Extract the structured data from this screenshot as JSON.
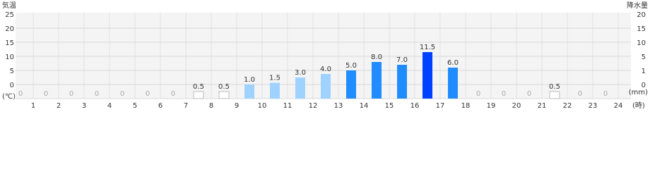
{
  "chart_data": {
    "type": "bar",
    "y_label": "気温",
    "y_unit": "(℃)",
    "y2_label": "降水量",
    "y2_unit": "(mm)",
    "x_unit": "(時)",
    "ylim": [
      0,
      25
    ],
    "yticks": [
      0,
      5,
      10,
      15,
      20,
      25
    ],
    "y2lim": [
      0,
      20
    ],
    "y2ticks": [
      0,
      1,
      5,
      10,
      15,
      20
    ],
    "grid": true,
    "categories": [
      "1",
      "2",
      "3",
      "4",
      "5",
      "6",
      "7",
      "8",
      "9",
      "10",
      "11",
      "12",
      "13",
      "14",
      "15",
      "16",
      "17",
      "18",
      "19",
      "20",
      "21",
      "22",
      "23",
      "24"
    ],
    "series": [
      {
        "axis": "y2",
        "values": [
          0,
          0,
          0,
          0,
          0,
          0,
          0,
          0.5,
          0.5,
          1.0,
          1.5,
          3.0,
          4.0,
          5.0,
          8.0,
          7.0,
          11.5,
          6.0,
          0,
          0,
          0,
          0.5,
          0,
          0
        ],
        "value_labels": [
          "0",
          "0",
          "0",
          "0",
          "0",
          "0",
          "0",
          "0.5",
          "0.5",
          "1.0",
          "1.5",
          "3.0",
          "4.0",
          "5.0",
          "8.0",
          "7.0",
          "11.5",
          "6.0",
          "0",
          "0",
          "0",
          "0.5",
          "0",
          "0"
        ],
        "colors": [
          "#ffffff",
          "#ffffff",
          "#ffffff",
          "#ffffff",
          "#ffffff",
          "#ffffff",
          "#ffffff",
          "#ffffff",
          "#ffffff",
          "#a0d2ff",
          "#a0d2ff",
          "#a0d2ff",
          "#a0d2ff",
          "#218cff",
          "#218cff",
          "#218cff",
          "#0041ff",
          "#218cff",
          "#ffffff",
          "#ffffff",
          "#ffffff",
          "#ffffff",
          "#ffffff",
          "#ffffff"
        ]
      }
    ]
  }
}
